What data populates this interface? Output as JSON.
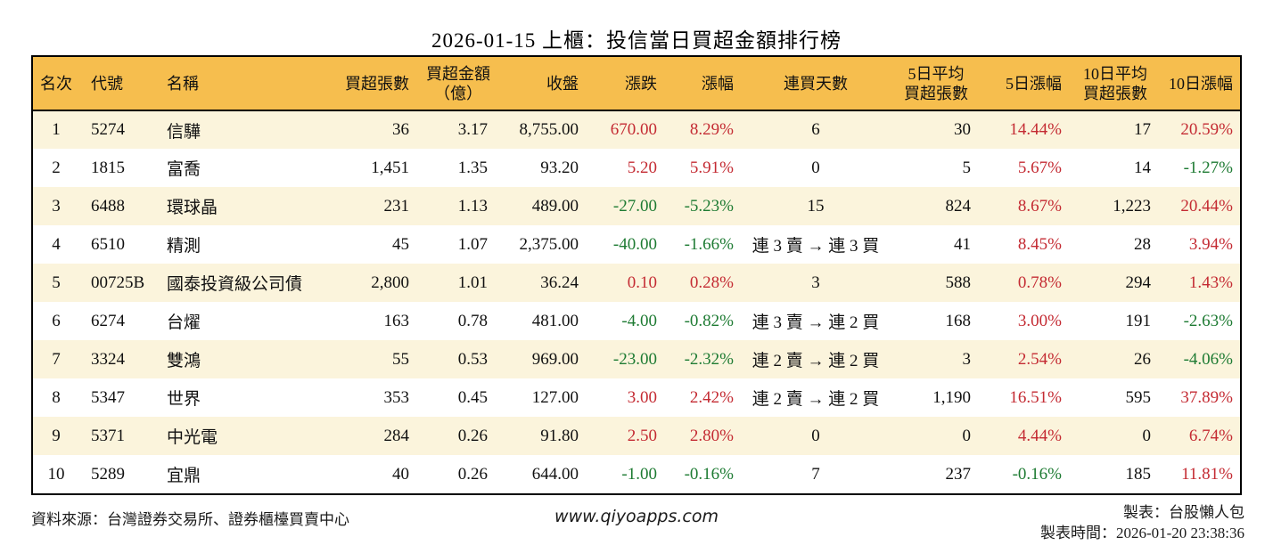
{
  "title": "2026-01-15 上櫃：投信當日買超金額排行榜",
  "colors": {
    "header_background": "#F6BE4E",
    "stripe_row_background": "#FBF4DC",
    "up_red": "#C42B33",
    "down_green": "#1E7B33",
    "border": "#000000"
  },
  "table": {
    "columns": [
      {
        "key": "rank",
        "lines": [
          "名次"
        ]
      },
      {
        "key": "code",
        "lines": [
          "代號"
        ]
      },
      {
        "key": "name",
        "lines": [
          "名稱"
        ]
      },
      {
        "key": "volume",
        "lines": [
          "買超張數"
        ]
      },
      {
        "key": "amount",
        "lines": [
          "買超金額",
          "（億）"
        ]
      },
      {
        "key": "close",
        "lines": [
          "收盤"
        ]
      },
      {
        "key": "change",
        "lines": [
          "漲跌"
        ]
      },
      {
        "key": "change_pct",
        "lines": [
          "漲幅"
        ]
      },
      {
        "key": "streak",
        "lines": [
          "連買天數"
        ]
      },
      {
        "key": "avg5",
        "lines": [
          "5日平均",
          "買超張數"
        ]
      },
      {
        "key": "pct5",
        "lines": [
          "5日漲幅"
        ]
      },
      {
        "key": "avg10",
        "lines": [
          "10日平均",
          "買超張數"
        ]
      },
      {
        "key": "pct10",
        "lines": [
          "10日漲幅"
        ]
      }
    ],
    "rows": [
      [
        {
          "t": "1"
        },
        {
          "t": "5274"
        },
        {
          "t": "信驊"
        },
        {
          "t": "36"
        },
        {
          "t": "3.17"
        },
        {
          "t": "8,755.00"
        },
        {
          "t": "670.00",
          "c": "red"
        },
        {
          "t": "8.29%",
          "c": "red"
        },
        {
          "t": "6"
        },
        {
          "t": "30"
        },
        {
          "t": "14.44%",
          "c": "red"
        },
        {
          "t": "17"
        },
        {
          "t": "20.59%",
          "c": "red"
        }
      ],
      [
        {
          "t": "2"
        },
        {
          "t": "1815"
        },
        {
          "t": "富喬"
        },
        {
          "t": "1,451"
        },
        {
          "t": "1.35"
        },
        {
          "t": "93.20"
        },
        {
          "t": "5.20",
          "c": "red"
        },
        {
          "t": "5.91%",
          "c": "red"
        },
        {
          "t": "0"
        },
        {
          "t": "5"
        },
        {
          "t": "5.67%",
          "c": "red"
        },
        {
          "t": "14"
        },
        {
          "t": "-1.27%",
          "c": "green"
        }
      ],
      [
        {
          "t": "3"
        },
        {
          "t": "6488"
        },
        {
          "t": "環球晶"
        },
        {
          "t": "231"
        },
        {
          "t": "1.13"
        },
        {
          "t": "489.00"
        },
        {
          "t": "-27.00",
          "c": "green"
        },
        {
          "t": "-5.23%",
          "c": "green"
        },
        {
          "t": "15"
        },
        {
          "t": "824"
        },
        {
          "t": "8.67%",
          "c": "red"
        },
        {
          "t": "1,223"
        },
        {
          "t": "20.44%",
          "c": "red"
        }
      ],
      [
        {
          "t": "4"
        },
        {
          "t": "6510"
        },
        {
          "t": "精測"
        },
        {
          "t": "45"
        },
        {
          "t": "1.07"
        },
        {
          "t": "2,375.00"
        },
        {
          "t": "-40.00",
          "c": "green"
        },
        {
          "t": "-1.66%",
          "c": "green"
        },
        {
          "t": "連 3 賣 → 連 3 買"
        },
        {
          "t": "41"
        },
        {
          "t": "8.45%",
          "c": "red"
        },
        {
          "t": "28"
        },
        {
          "t": "3.94%",
          "c": "red"
        }
      ],
      [
        {
          "t": "5"
        },
        {
          "t": "00725B"
        },
        {
          "t": "國泰投資級公司債"
        },
        {
          "t": "2,800"
        },
        {
          "t": "1.01"
        },
        {
          "t": "36.24"
        },
        {
          "t": "0.10",
          "c": "red"
        },
        {
          "t": "0.28%",
          "c": "red"
        },
        {
          "t": "3"
        },
        {
          "t": "588"
        },
        {
          "t": "0.78%",
          "c": "red"
        },
        {
          "t": "294"
        },
        {
          "t": "1.43%",
          "c": "red"
        }
      ],
      [
        {
          "t": "6"
        },
        {
          "t": "6274"
        },
        {
          "t": "台燿"
        },
        {
          "t": "163"
        },
        {
          "t": "0.78"
        },
        {
          "t": "481.00"
        },
        {
          "t": "-4.00",
          "c": "green"
        },
        {
          "t": "-0.82%",
          "c": "green"
        },
        {
          "t": "連 3 賣 → 連 2 買"
        },
        {
          "t": "168"
        },
        {
          "t": "3.00%",
          "c": "red"
        },
        {
          "t": "191"
        },
        {
          "t": "-2.63%",
          "c": "green"
        }
      ],
      [
        {
          "t": "7"
        },
        {
          "t": "3324"
        },
        {
          "t": "雙鴻"
        },
        {
          "t": "55"
        },
        {
          "t": "0.53"
        },
        {
          "t": "969.00"
        },
        {
          "t": "-23.00",
          "c": "green"
        },
        {
          "t": "-2.32%",
          "c": "green"
        },
        {
          "t": "連 2 賣 → 連 2 買"
        },
        {
          "t": "3"
        },
        {
          "t": "2.54%",
          "c": "red"
        },
        {
          "t": "26"
        },
        {
          "t": "-4.06%",
          "c": "green"
        }
      ],
      [
        {
          "t": "8"
        },
        {
          "t": "5347"
        },
        {
          "t": "世界"
        },
        {
          "t": "353"
        },
        {
          "t": "0.45"
        },
        {
          "t": "127.00"
        },
        {
          "t": "3.00",
          "c": "red"
        },
        {
          "t": "2.42%",
          "c": "red"
        },
        {
          "t": "連 2 賣 → 連 2 買"
        },
        {
          "t": "1,190"
        },
        {
          "t": "16.51%",
          "c": "red"
        },
        {
          "t": "595"
        },
        {
          "t": "37.89%",
          "c": "red"
        }
      ],
      [
        {
          "t": "9"
        },
        {
          "t": "5371"
        },
        {
          "t": "中光電"
        },
        {
          "t": "284"
        },
        {
          "t": "0.26"
        },
        {
          "t": "91.80"
        },
        {
          "t": "2.50",
          "c": "red"
        },
        {
          "t": "2.80%",
          "c": "red"
        },
        {
          "t": "0"
        },
        {
          "t": "0"
        },
        {
          "t": "4.44%",
          "c": "red"
        },
        {
          "t": "0"
        },
        {
          "t": "6.74%",
          "c": "red"
        }
      ],
      [
        {
          "t": "10"
        },
        {
          "t": "5289"
        },
        {
          "t": "宜鼎"
        },
        {
          "t": "40"
        },
        {
          "t": "0.26"
        },
        {
          "t": "644.00"
        },
        {
          "t": "-1.00",
          "c": "green"
        },
        {
          "t": "-0.16%",
          "c": "green"
        },
        {
          "t": "7"
        },
        {
          "t": "237"
        },
        {
          "t": "-0.16%",
          "c": "green"
        },
        {
          "t": "185"
        },
        {
          "t": "11.81%",
          "c": "red"
        }
      ]
    ]
  },
  "footer": {
    "source": "資料來源：台灣證券交易所、證券櫃檯買賣中心",
    "website": "www.qiyoapps.com",
    "maker": "製表：台股懶人包",
    "made_time": "製表時間：2026-01-20 23:38:36"
  }
}
